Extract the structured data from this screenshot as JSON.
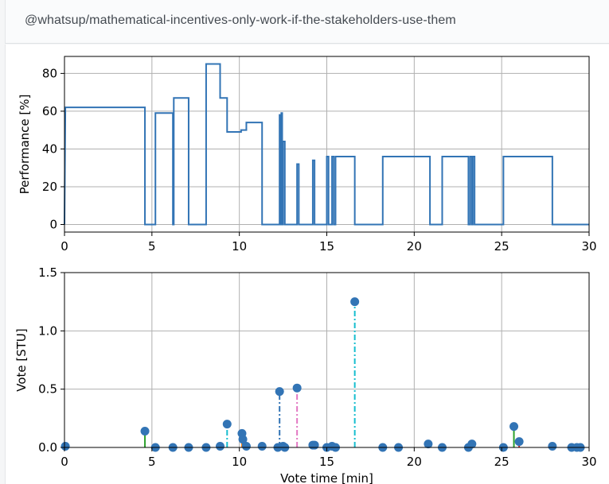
{
  "header": {
    "title": "@whatsup/mathematical-incentives-only-work-if-the-stakeholders-use-them"
  },
  "chart_data": [
    {
      "type": "line",
      "step": true,
      "color": "#3274b5",
      "xlabel": "",
      "ylabel": "Performance [%]",
      "xlim": [
        0,
        30
      ],
      "ylim": [
        -4,
        89
      ],
      "xticks": [
        0,
        5,
        10,
        15,
        20,
        25,
        30
      ],
      "yticks": [
        0,
        20,
        40,
        60,
        80
      ],
      "grid": true,
      "points": [
        [
          0.0,
          0
        ],
        [
          0.05,
          62
        ],
        [
          4.6,
          62
        ],
        [
          4.6,
          0
        ],
        [
          5.2,
          0
        ],
        [
          5.2,
          59
        ],
        [
          6.2,
          59
        ],
        [
          6.2,
          0
        ],
        [
          6.25,
          0
        ],
        [
          6.25,
          67
        ],
        [
          7.1,
          67
        ],
        [
          7.1,
          0
        ],
        [
          8.1,
          0
        ],
        [
          8.1,
          85
        ],
        [
          8.9,
          85
        ],
        [
          8.9,
          67
        ],
        [
          9.3,
          67
        ],
        [
          9.3,
          49
        ],
        [
          10.1,
          49
        ],
        [
          10.1,
          50
        ],
        [
          10.4,
          50
        ],
        [
          10.4,
          54
        ],
        [
          11.3,
          54
        ],
        [
          11.3,
          0
        ],
        [
          12.3,
          0
        ],
        [
          12.3,
          58
        ],
        [
          12.35,
          58
        ],
        [
          12.35,
          0
        ],
        [
          12.4,
          0
        ],
        [
          12.4,
          59
        ],
        [
          12.45,
          59
        ],
        [
          12.45,
          0
        ],
        [
          12.5,
          0
        ],
        [
          12.5,
          44
        ],
        [
          12.6,
          44
        ],
        [
          12.6,
          0
        ],
        [
          13.3,
          0
        ],
        [
          13.3,
          32
        ],
        [
          13.4,
          32
        ],
        [
          13.4,
          0
        ],
        [
          14.2,
          0
        ],
        [
          14.2,
          34
        ],
        [
          14.3,
          34
        ],
        [
          14.3,
          0
        ],
        [
          15.0,
          0
        ],
        [
          15.0,
          36
        ],
        [
          15.1,
          36
        ],
        [
          15.1,
          0
        ],
        [
          15.3,
          0
        ],
        [
          15.3,
          36
        ],
        [
          15.4,
          36
        ],
        [
          15.4,
          0
        ],
        [
          15.5,
          0
        ],
        [
          15.5,
          36
        ],
        [
          16.6,
          36
        ],
        [
          16.6,
          0
        ],
        [
          18.2,
          0
        ],
        [
          18.2,
          36
        ],
        [
          20.9,
          36
        ],
        [
          20.9,
          0
        ],
        [
          21.6,
          0
        ],
        [
          21.6,
          36
        ],
        [
          23.1,
          36
        ],
        [
          23.1,
          0
        ],
        [
          23.2,
          0
        ],
        [
          23.2,
          36
        ],
        [
          23.3,
          36
        ],
        [
          23.3,
          0
        ],
        [
          23.35,
          0
        ],
        [
          23.35,
          36
        ],
        [
          23.45,
          36
        ],
        [
          23.45,
          0
        ],
        [
          25.1,
          0
        ],
        [
          25.1,
          36
        ],
        [
          27.9,
          36
        ],
        [
          27.9,
          0
        ],
        [
          30.0,
          0
        ]
      ]
    },
    {
      "type": "stem",
      "marker_color": "#3274b5",
      "xlabel": "Vote time [min]",
      "ylabel": "Vote [STU]",
      "xlim": [
        0,
        30
      ],
      "ylim": [
        0,
        1.5
      ],
      "xticks": [
        0,
        5,
        10,
        15,
        20,
        25,
        30
      ],
      "yticks": [
        0.0,
        0.5,
        1.0,
        1.5
      ],
      "ytick_labels": [
        "0.0",
        "0.5",
        "1.0",
        "1.5"
      ],
      "grid": true,
      "points": [
        {
          "x": 0.05,
          "y": 0.01,
          "stem": "#3274b5",
          "dash": "solid"
        },
        {
          "x": 4.6,
          "y": 0.14,
          "stem": "#2ca02c",
          "dash": "solid"
        },
        {
          "x": 5.2,
          "y": 0.0,
          "stem": "#3274b5",
          "dash": "solid"
        },
        {
          "x": 6.2,
          "y": 0.0,
          "stem": "#3274b5",
          "dash": "solid"
        },
        {
          "x": 7.1,
          "y": 0.0,
          "stem": "#3274b5",
          "dash": "solid"
        },
        {
          "x": 8.1,
          "y": 0.0,
          "stem": "#3274b5",
          "dash": "solid"
        },
        {
          "x": 8.9,
          "y": 0.01,
          "stem": "#3274b5",
          "dash": "solid"
        },
        {
          "x": 9.3,
          "y": 0.2,
          "stem": "#17becf",
          "dash": "dashdot"
        },
        {
          "x": 10.15,
          "y": 0.12,
          "stem": "#ff7f0e",
          "dash": "solid"
        },
        {
          "x": 10.2,
          "y": 0.07,
          "stem": "#3274b5",
          "dash": "solid"
        },
        {
          "x": 10.4,
          "y": 0.01,
          "stem": "#3274b5",
          "dash": "solid"
        },
        {
          "x": 11.3,
          "y": 0.01,
          "stem": "#3274b5",
          "dash": "solid"
        },
        {
          "x": 12.2,
          "y": 0.0,
          "stem": "#3274b5",
          "dash": "solid"
        },
        {
          "x": 12.3,
          "y": 0.48,
          "stem": "#3274b5",
          "dash": "dashdot"
        },
        {
          "x": 12.5,
          "y": 0.01,
          "stem": "#3274b5",
          "dash": "solid"
        },
        {
          "x": 12.6,
          "y": 0.0,
          "stem": "#3274b5",
          "dash": "solid"
        },
        {
          "x": 13.3,
          "y": 0.51,
          "stem": "#e377c2",
          "dash": "dashdot"
        },
        {
          "x": 14.2,
          "y": 0.02,
          "stem": "#3274b5",
          "dash": "solid"
        },
        {
          "x": 14.3,
          "y": 0.02,
          "stem": "#3274b5",
          "dash": "solid"
        },
        {
          "x": 15.0,
          "y": 0.0,
          "stem": "#3274b5",
          "dash": "solid"
        },
        {
          "x": 15.3,
          "y": 0.01,
          "stem": "#3274b5",
          "dash": "solid"
        },
        {
          "x": 15.5,
          "y": 0.0,
          "stem": "#3274b5",
          "dash": "solid"
        },
        {
          "x": 16.6,
          "y": 1.25,
          "stem": "#17becf",
          "dash": "dashdot"
        },
        {
          "x": 18.2,
          "y": 0.0,
          "stem": "#3274b5",
          "dash": "solid"
        },
        {
          "x": 19.1,
          "y": 0.0,
          "stem": "#3274b5",
          "dash": "solid"
        },
        {
          "x": 20.8,
          "y": 0.03,
          "stem": "#3274b5",
          "dash": "solid"
        },
        {
          "x": 21.6,
          "y": 0.0,
          "stem": "#3274b5",
          "dash": "solid"
        },
        {
          "x": 23.1,
          "y": 0.0,
          "stem": "#3274b5",
          "dash": "solid"
        },
        {
          "x": 23.3,
          "y": 0.03,
          "stem": "#3274b5",
          "dash": "solid"
        },
        {
          "x": 25.1,
          "y": 0.0,
          "stem": "#3274b5",
          "dash": "solid"
        },
        {
          "x": 25.7,
          "y": 0.18,
          "stem": "#2ca02c",
          "dash": "solid"
        },
        {
          "x": 26.0,
          "y": 0.05,
          "stem": "#d62728",
          "dash": "solid"
        },
        {
          "x": 27.9,
          "y": 0.01,
          "stem": "#3274b5",
          "dash": "solid"
        },
        {
          "x": 29.0,
          "y": 0.0,
          "stem": "#3274b5",
          "dash": "solid"
        },
        {
          "x": 29.3,
          "y": 0.0,
          "stem": "#3274b5",
          "dash": "solid"
        },
        {
          "x": 29.5,
          "y": 0.0,
          "stem": "#3274b5",
          "dash": "solid"
        }
      ]
    }
  ]
}
